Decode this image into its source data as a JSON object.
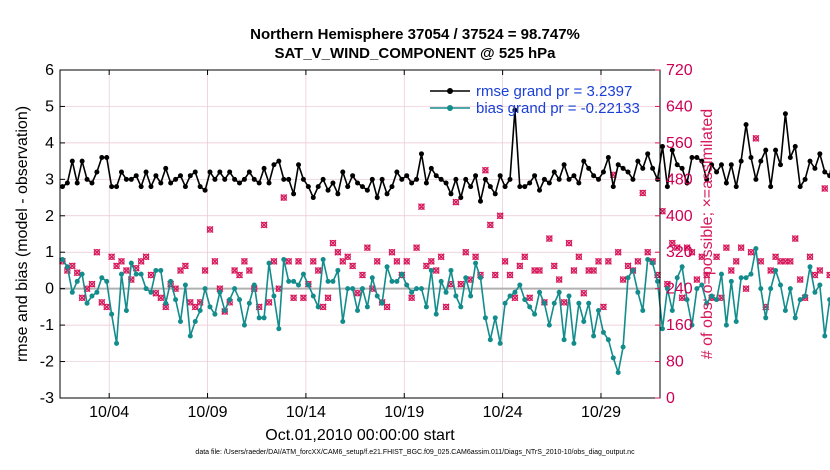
{
  "title": {
    "line1": "Northern Hemisphere 37054 / 37524 = 98.747%",
    "line2": "SAT_V_WIND_COMPONENT @ 525 hPa"
  },
  "footer": "data file: /Users/raeder/DAI/ATM_forcXX/CAM6_setup/f.e21.FHIST_BGC.f09_025.CAM6assim.011/Diags_NTrS_2010-10/obs_diag_output.nc",
  "colors": {
    "rmse": "#000000",
    "bias": "#138c8c",
    "obs": "#d6195c",
    "zero_line": "#b0b0b0",
    "legend_text": "#1a3fd6"
  },
  "chart_data": {
    "type": "line",
    "title": "Northern Hemisphere 37054 / 37524 = 98.747%",
    "subtitle": "SAT_V_WIND_COMPONENT @ 525 hPa",
    "xlabel": "Oct.01,2010 00:00:00 start",
    "ylabel": "rmse and bias (model - observation)",
    "y2label": "# of obs: o=possible; ×=assimilated",
    "xlim": [
      1.5,
      32.0
    ],
    "ylim": [
      -3,
      6
    ],
    "y2lim": [
      0,
      720
    ],
    "x_ticks": [
      4,
      9,
      14,
      19,
      24,
      29
    ],
    "x_tick_labels": [
      "10/04",
      "10/09",
      "10/14",
      "10/19",
      "10/24",
      "10/29"
    ],
    "y_ticks": [
      -3,
      -2,
      -1,
      0,
      1,
      2,
      3,
      4,
      5,
      6
    ],
    "y_tick_labels": [
      "-3",
      "-2",
      "-1",
      "0",
      "1",
      "2",
      "3",
      "4",
      "5",
      "6"
    ],
    "y2_ticks": [
      0,
      80,
      160,
      240,
      320,
      400,
      480,
      560,
      640,
      720
    ],
    "y2_tick_labels": [
      "0",
      "80",
      "160",
      "240",
      "320",
      "400",
      "480",
      "560",
      "640",
      "720"
    ],
    "legend": [
      "rmse grand pr = 3.2397",
      "bias grand pr = -0.22133"
    ],
    "legend_position": "top-right",
    "x_start": 1.625,
    "x_step": 0.25,
    "series": [
      {
        "name": "rmse grand pr = 3.2397",
        "values": [
          2.8,
          2.9,
          3.5,
          2.9,
          3.5,
          3.0,
          2.9,
          3.2,
          3.6,
          3.6,
          2.8,
          2.8,
          3.2,
          3.0,
          3.0,
          3.1,
          2.8,
          3.2,
          2.8,
          3.1,
          2.9,
          3.3,
          2.9,
          3.0,
          3.1,
          2.8,
          3.1,
          3.2,
          2.8,
          2.7,
          3.2,
          3.0,
          3.2,
          3.0,
          3.2,
          3.0,
          2.9,
          3.0,
          3.2,
          3.0,
          2.9,
          3.3,
          2.9,
          3.4,
          3.5,
          3.0,
          3.0,
          2.6,
          3.4,
          3.0,
          2.8,
          2.5,
          2.8,
          3.0,
          2.7,
          2.9,
          2.6,
          3.2,
          2.8,
          3.1,
          2.9,
          2.8,
          2.7,
          3.0,
          2.5,
          3.0,
          2.6,
          2.8,
          3.2,
          3.0,
          3.1,
          2.9,
          3.0,
          3.7,
          2.9,
          3.3,
          3.1,
          3.0,
          2.9,
          2.6,
          3.0,
          2.5,
          3.0,
          2.8,
          3.1,
          2.4,
          3.0,
          2.8,
          2.6,
          3.1,
          2.8,
          3.0,
          4.9,
          2.8,
          2.8,
          2.9,
          3.1,
          2.7,
          3.0,
          2.9,
          3.2,
          3.0,
          3.4,
          3.0,
          3.1,
          2.9,
          3.5,
          3.3,
          3.1,
          3.0,
          3.2,
          3.6,
          2.8,
          3.4,
          3.3,
          3.2,
          3.0,
          3.5,
          3.3,
          3.7,
          3.3,
          3.0,
          3.9,
          2.8,
          3.8,
          3.4,
          3.3,
          2.9,
          3.6,
          3.6,
          3.5,
          3.0,
          3.4,
          3.2,
          3.4,
          2.9,
          3.4,
          2.8,
          3.5,
          4.5,
          3.6,
          3.0,
          3.5,
          3.8,
          2.8,
          3.8,
          3.4,
          4.8,
          3.6,
          3.9,
          2.8,
          3.0,
          3.5,
          3.3,
          3.7,
          3.2,
          3.1,
          3.9,
          3.5,
          2.9
        ]
      },
      {
        "name": "bias grand pr = -0.22133",
        "values": [
          0.8,
          0.6,
          -0.1,
          0.2,
          0.4,
          -0.4,
          -0.2,
          -0.1,
          0.3,
          0.2,
          -0.7,
          -1.5,
          0.4,
          -0.6,
          0.7,
          0.4,
          0.4,
          0.0,
          -0.1,
          0.5,
          0.5,
          -0.4,
          0.2,
          -0.3,
          -0.9,
          0.1,
          -1.3,
          -0.9,
          -0.6,
          0.0,
          -0.5,
          -0.7,
          -0.1,
          -0.6,
          -0.3,
          0.0,
          -0.3,
          -1.0,
          -0.4,
          0.1,
          -0.8,
          -0.8,
          0.7,
          -0.2,
          -1.1,
          0.8,
          0.2,
          0.2,
          0.1,
          0.4,
          0.1,
          -0.2,
          -0.5,
          0.8,
          0.2,
          0.2,
          0.5,
          -0.9,
          0.0,
          0.0,
          -0.6,
          0.0,
          -0.5,
          0.3,
          -0.2,
          -0.4,
          0.6,
          0.2,
          0.2,
          0.4,
          0.1,
          -0.1,
          0.0,
          0.0,
          -0.5,
          0.5,
          -0.7,
          0.2,
          -0.1,
          0.5,
          -0.2,
          -0.5,
          0.3,
          -0.2,
          0.7,
          0.3,
          -0.8,
          -1.4,
          -0.8,
          -1.5,
          -0.4,
          -0.2,
          -0.1,
          0.1,
          -0.3,
          -0.5,
          -0.7,
          -0.1,
          -0.4,
          -1.0,
          -0.4,
          -0.1,
          -1.4,
          -0.2,
          -1.5,
          -0.4,
          -0.9,
          -0.4,
          -1.3,
          -0.6,
          -1.2,
          -1.4,
          -1.9,
          -2.3,
          -1.6,
          0.3,
          0.5,
          -0.1,
          -0.6,
          0.8,
          0.7,
          0.2,
          -1.1,
          0.0,
          -0.6,
          0.3,
          0.6,
          -0.3,
          -1.0,
          0.0,
          0.1,
          -0.4,
          -0.2,
          -0.3,
          0.4,
          -1.0,
          0.2,
          -0.9,
          0.3,
          0.3,
          0.4,
          1.1,
          0.0,
          -0.8,
          0.0,
          0.5,
          0.1,
          -0.6,
          0.0,
          -0.8,
          -0.3,
          -0.2,
          0.6,
          -0.1,
          0.1,
          -1.3,
          -0.3,
          -1.1,
          -1.0
        ]
      },
      {
        "name": "# of obs possible (o)",
        "axis": "y2",
        "marker": "o",
        "values": [
          300,
          280,
          290,
          275,
          220,
          240,
          250,
          320,
          210,
          200,
          310,
          290,
          300,
          280,
          260,
          285,
          300,
          310,
          270,
          230,
          220,
          200,
          250,
          240,
          280,
          290,
          210,
          200,
          210,
          280,
          370,
          300,
          240,
          190,
          210,
          280,
          270,
          300,
          280,
          240,
          200,
          380,
          210,
          300,
          240,
          440,
          300,
          220,
          300,
          220,
          250,
          300,
          280,
          200,
          220,
          340,
          320,
          300,
          310,
          290,
          230,
          270,
          330,
          240,
          300,
          210,
          200,
          320,
          300,
          270,
          300,
          220,
          330,
          420,
          290,
          300,
          280,
          310,
          200,
          250,
          430,
          250,
          320,
          260,
          310,
          270,
          500,
          380,
          270,
          400,
          300,
          270,
          220,
          290,
          310,
          220,
          280,
          280,
          210,
          350,
          290,
          260,
          210,
          340,
          280,
          310,
          230,
          280,
          280,
          300,
          200,
          300,
          490,
          320,
          260,
          290,
          280,
          300,
          450,
          320,
          300,
          270,
          410,
          250,
          340,
          330,
          220,
          330,
          320,
          260,
          310,
          270,
          220,
          310,
          220,
          330,
          280,
          300,
          330,
          240,
          320,
          570,
          300,
          200,
          280,
          310,
          300,
          300,
          300,
          350,
          260,
          220,
          310,
          270,
          280,
          460,
          270,
          290,
          200,
          270,
          460,
          0
        ]
      },
      {
        "name": "# of obs assimilated (×)",
        "axis": "y2",
        "marker": "x",
        "values": [
          300,
          280,
          290,
          275,
          220,
          240,
          250,
          320,
          210,
          200,
          310,
          290,
          300,
          280,
          260,
          285,
          300,
          310,
          270,
          230,
          220,
          200,
          250,
          240,
          280,
          290,
          210,
          200,
          210,
          280,
          370,
          300,
          240,
          190,
          210,
          280,
          270,
          300,
          280,
          240,
          200,
          380,
          210,
          300,
          240,
          440,
          300,
          220,
          300,
          220,
          250,
          300,
          280,
          200,
          220,
          340,
          320,
          300,
          310,
          290,
          230,
          270,
          330,
          240,
          300,
          210,
          200,
          320,
          300,
          270,
          300,
          220,
          330,
          420,
          290,
          300,
          280,
          310,
          200,
          250,
          430,
          250,
          320,
          260,
          310,
          270,
          500,
          380,
          270,
          400,
          300,
          270,
          220,
          290,
          310,
          220,
          280,
          280,
          210,
          350,
          290,
          260,
          210,
          340,
          280,
          310,
          230,
          280,
          280,
          300,
          200,
          300,
          490,
          320,
          260,
          290,
          280,
          300,
          450,
          320,
          300,
          270,
          410,
          250,
          340,
          330,
          220,
          330,
          320,
          260,
          310,
          270,
          220,
          310,
          220,
          330,
          280,
          300,
          330,
          240,
          320,
          570,
          300,
          200,
          280,
          310,
          300,
          300,
          300,
          350,
          260,
          220,
          310,
          270,
          280,
          460,
          270,
          290,
          200,
          270,
          460,
          0
        ]
      }
    ]
  }
}
